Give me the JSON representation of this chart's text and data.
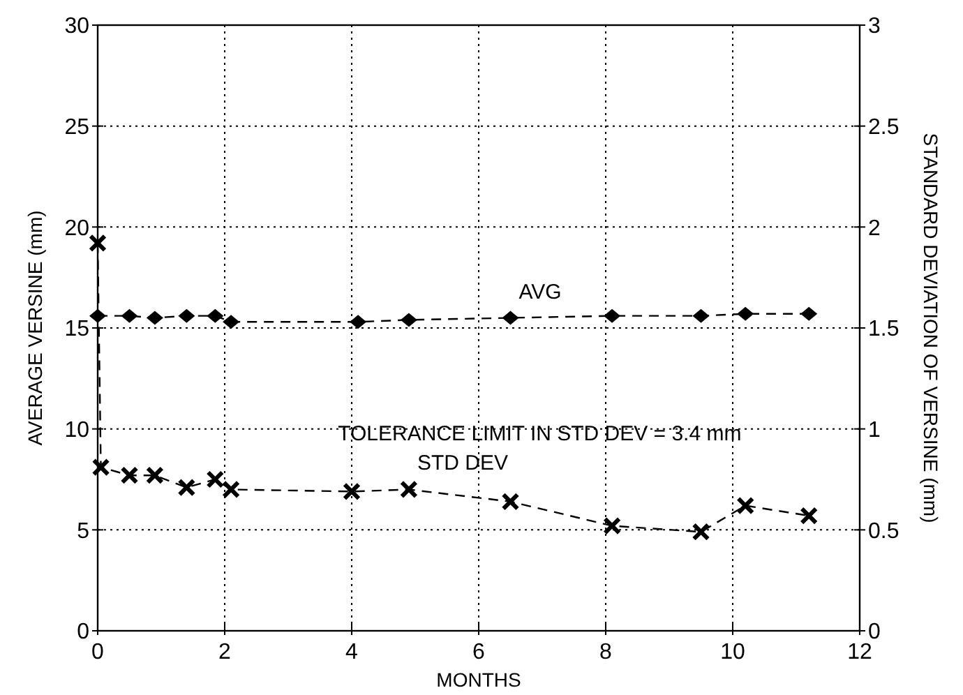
{
  "chart_data": {
    "type": "line",
    "xlabel": "MONTHS",
    "ylabel": "AVERAGE VERSINE (mm)",
    "y2label": "STANDARD DEVIATION OF VERSINE (mm)",
    "xlim": [
      0,
      12
    ],
    "xticks": [
      0,
      2,
      4,
      6,
      8,
      10,
      12
    ],
    "ylim": [
      0,
      30
    ],
    "yticks": [
      0,
      5,
      10,
      15,
      20,
      25,
      30
    ],
    "y2lim": [
      0,
      3
    ],
    "y2ticks": [
      0,
      0.5,
      1,
      1.5,
      2,
      2.5,
      3
    ],
    "grid": true,
    "line_style": "dashed",
    "annotations": [
      "TOLERANCE LIMIT IN STD DEV = 3.4 mm"
    ],
    "series": [
      {
        "name": "AVG",
        "color": "#000000",
        "marker": "diamond",
        "x": [
          0,
          0.5,
          0.9,
          1.4,
          1.85,
          2.1,
          4.1,
          4.9,
          6.5,
          8.1,
          9.5,
          10.2,
          11.2
        ],
        "values": [
          15.6,
          15.6,
          15.5,
          15.6,
          15.6,
          15.3,
          15.3,
          15.4,
          15.5,
          15.6,
          15.6,
          15.7,
          15.7
        ]
      },
      {
        "name": "STD DEV",
        "color": "#000000",
        "marker": "cross",
        "axis": "y2",
        "x": [
          0,
          0.05,
          0.5,
          0.9,
          1.4,
          1.85,
          2.1,
          4.0,
          4.9,
          6.5,
          8.1,
          9.5,
          10.2,
          11.2
        ],
        "values": [
          1.92,
          0.81,
          0.77,
          0.77,
          0.71,
          0.75,
          0.7,
          0.69,
          0.7,
          0.64,
          0.52,
          0.49,
          0.62,
          0.57
        ]
      }
    ]
  }
}
